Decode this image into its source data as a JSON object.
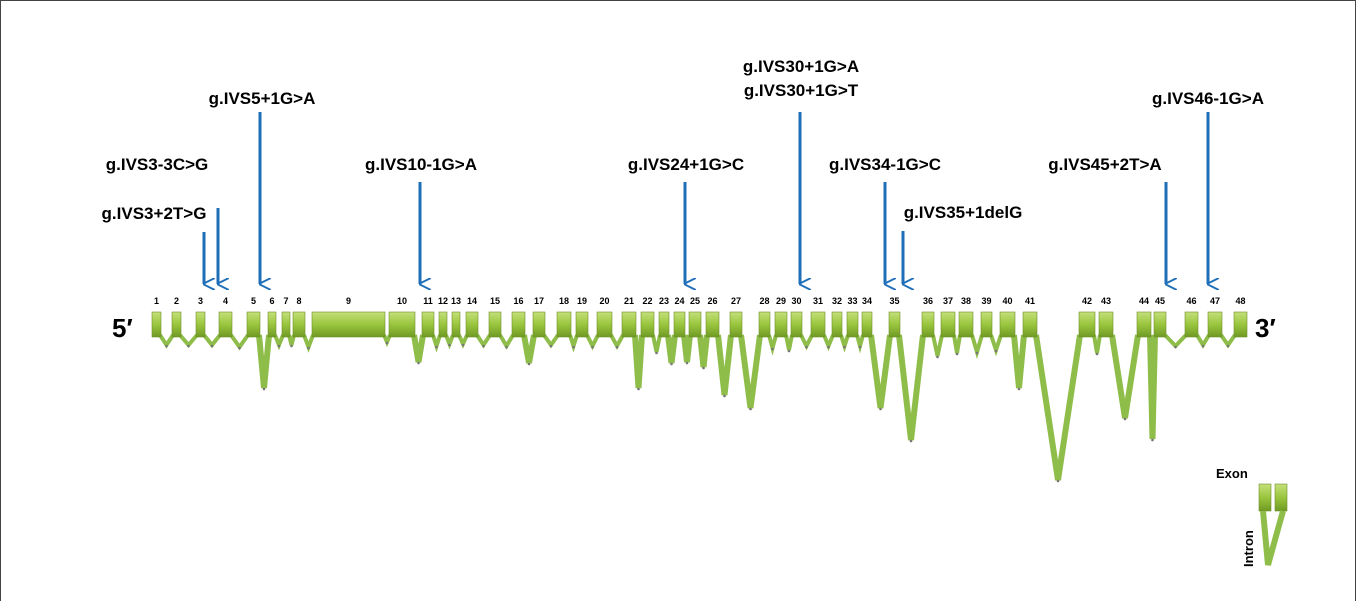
{
  "gene": {
    "five_prime": "5′",
    "three_prime": "3′"
  },
  "exons": [
    "1",
    "2",
    "3",
    "4",
    "5",
    "6",
    "7",
    "8",
    "9",
    "10",
    "11",
    "12",
    "13",
    "14",
    "15",
    "16",
    "17",
    "18",
    "19",
    "20",
    "21",
    "22",
    "23",
    "24",
    "25",
    "26",
    "27",
    "28",
    "29",
    "30",
    "31",
    "32",
    "33",
    "34",
    "35",
    "36",
    "37",
    "38",
    "39",
    "40",
    "41",
    "42",
    "43",
    "44",
    "45",
    "46",
    "47",
    "48"
  ],
  "mutations": [
    {
      "label": "g.IVS3+2T>G",
      "exon": "3"
    },
    {
      "label": "g.IVS3-3C>G",
      "exon": "4"
    },
    {
      "label": "g.IVS5+1G>A",
      "exon": "5"
    },
    {
      "label": "g.IVS10-1G>A",
      "exon": "11"
    },
    {
      "label": "g.IVS24+1G>C",
      "exon": "24"
    },
    {
      "label": "g.IVS30+1G>A\ng.IVS30+1G>T",
      "lines": [
        "g.IVS30+1G>A",
        "g.IVS30+1G>T"
      ],
      "exon": "30"
    },
    {
      "label": "g.IVS34-1G>C",
      "exon": "35"
    },
    {
      "label": "g.IVS35+1delG",
      "exon": "35"
    },
    {
      "label": "g.IVS45+2T>A",
      "exon": "45"
    },
    {
      "label": "g.IVS46-1G>A",
      "exon": "47"
    }
  ],
  "legend": {
    "exon_label": "Exon",
    "intron_label": "Intron"
  },
  "colors": {
    "exon": "#9ac53e",
    "intron": "#8fbd4a",
    "arrow": "#1f6fb8"
  }
}
